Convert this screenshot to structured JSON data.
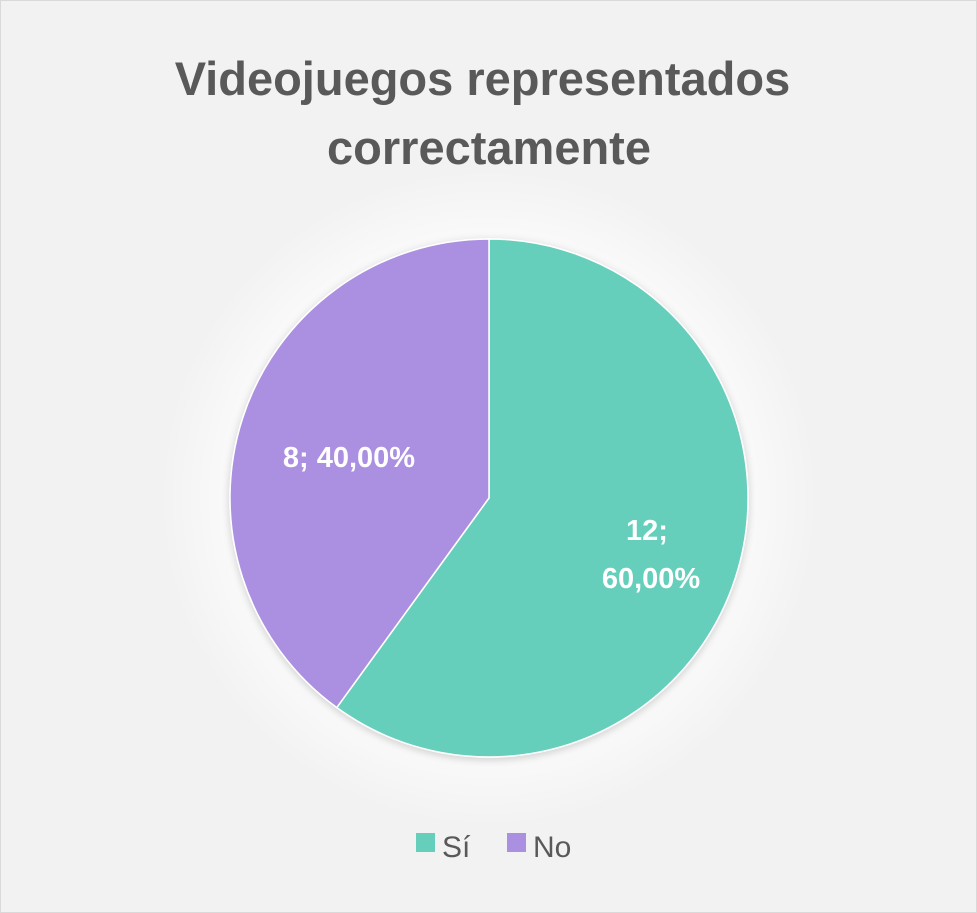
{
  "chart_data": {
    "type": "pie",
    "title": "Videojuegos representados correctamente",
    "title_lines": [
      "Videojuegos representados",
      "correctamente"
    ],
    "categories": [
      "Sí",
      "No"
    ],
    "values": [
      12,
      8
    ],
    "percentages": [
      "60,00%",
      "40,00%"
    ],
    "data_labels": [
      {
        "count": "12;",
        "percent": "60,00%"
      },
      {
        "text": "8; 40,00%"
      }
    ],
    "legend": {
      "position": "bottom",
      "entries": [
        "Sí",
        "No"
      ]
    },
    "start_angle_deg": 0,
    "direction": "clockwise"
  },
  "colors": {
    "background": "#f2f2f2",
    "border": "#d9d9d9",
    "title": "#595959",
    "series": [
      "#66cfbb",
      "#ab8fe0"
    ],
    "label_text": "#ffffff",
    "legend_text": "#595959"
  }
}
